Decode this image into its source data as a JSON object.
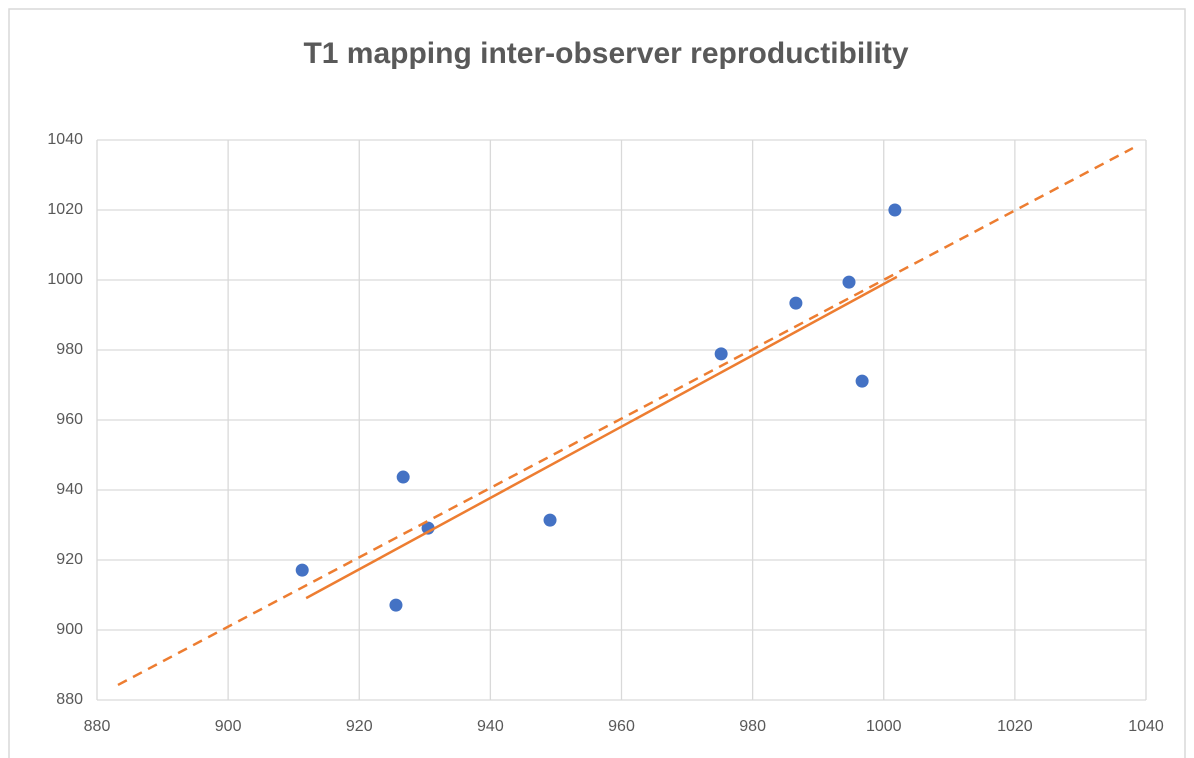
{
  "chart_data": {
    "type": "scatter",
    "title": "T1 mapping inter-observer reproductibility",
    "xlim": [
      880,
      1040
    ],
    "xticks": [
      880,
      900,
      920,
      940,
      960,
      980,
      1000,
      1020,
      1040
    ],
    "ylim": [
      880,
      1040
    ],
    "yticks": [
      880,
      900,
      920,
      940,
      960,
      980,
      1000,
      1020,
      1040
    ],
    "grid": true,
    "series": [
      {
        "style": "markers",
        "color": "#4472c4",
        "x": [
          911.3,
          925.6,
          926.7,
          930.5,
          949.1,
          975.2,
          986.6,
          994.7,
          996.7,
          1001.7
        ],
        "values": [
          917.1,
          907.1,
          943.7,
          929.1,
          931.4,
          978.9,
          993.4,
          999.4,
          971.1,
          1020
        ]
      },
      {
        "style": "solid",
        "color": "#ed7d31",
        "x": [
          911.9,
          1002.0
        ],
        "values": [
          909.1,
          1000.9
        ]
      },
      {
        "style": "dashed",
        "color": "#ed7d31",
        "x": [
          883.2,
          1038.0
        ],
        "values": [
          884.3,
          1037.7
        ]
      }
    ]
  }
}
